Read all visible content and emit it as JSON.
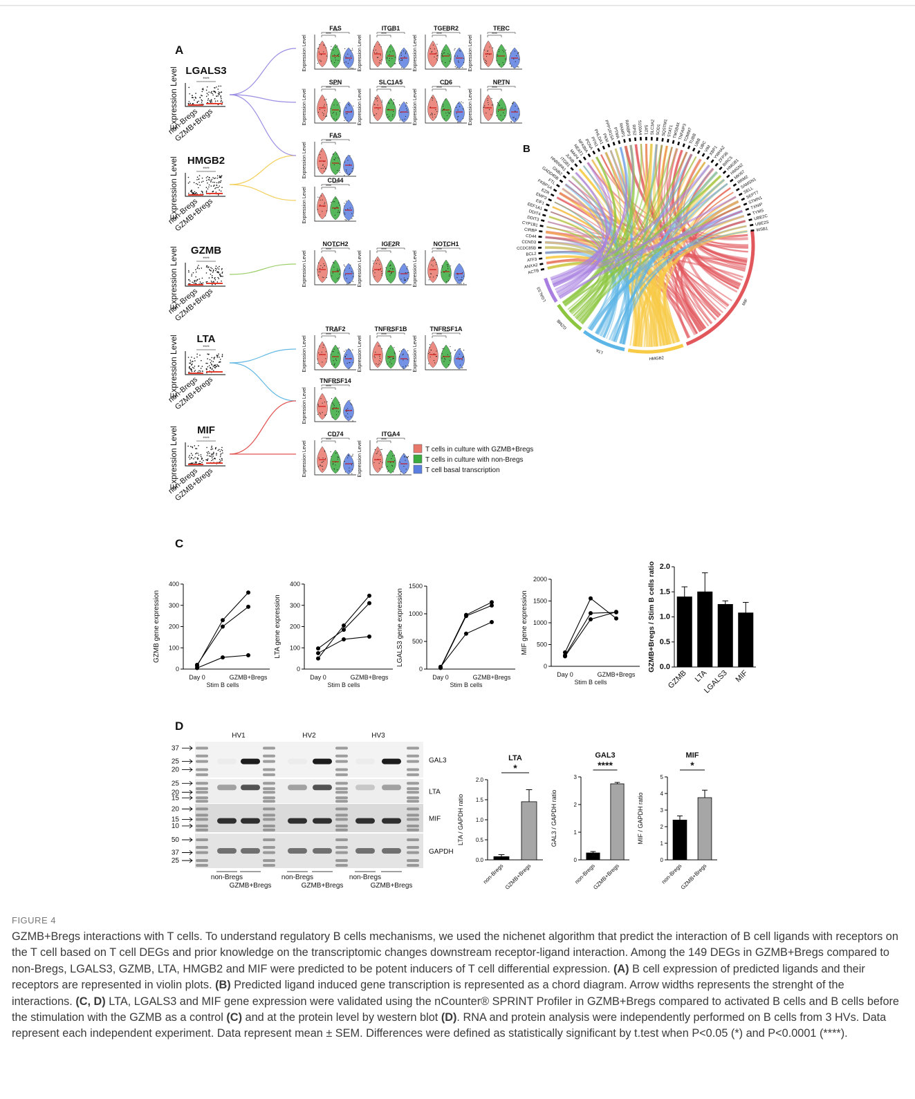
{
  "figure": {
    "panel_a": {
      "label": "A",
      "y_axis_label": "Expression Level",
      "groups": [
        "non-Bregs",
        "GZMB+Bregs"
      ],
      "significance": "****",
      "ligands": [
        {
          "name": "LGALS3",
          "color": "#9a8de3",
          "receptor_rows": [
            [
              "FAS",
              "ITGB1",
              "TGFBR2",
              "TFRC"
            ],
            [
              "SPN",
              "SLC1A5",
              "CD6",
              "NPTN"
            ]
          ]
        },
        {
          "name": "HMGB2",
          "color": "#f3cf5a",
          "receptor_rows": [
            [
              "FAS"
            ],
            [
              "CD44"
            ]
          ]
        },
        {
          "name": "GZMB",
          "color": "#9ccf6a",
          "receptor_rows": [
            [
              "NOTCH2",
              "IGF2R",
              "NOTCH1"
            ]
          ]
        },
        {
          "name": "LTA",
          "color": "#62b8e3",
          "receptor_rows": [
            [
              "TRAF2",
              "TNFRSF1B",
              "TNFRSF1A"
            ],
            [
              "TNFRSF14"
            ]
          ]
        },
        {
          "name": "MIF",
          "color": "#e0504e",
          "receptor_rows": [
            [
              "CD74",
              "ITGA4"
            ]
          ]
        }
      ],
      "legend": [
        {
          "name": "T cells in culture with GZMB+Bregs",
          "color": "#e8776c"
        },
        {
          "name": "T cells in culture with non-Bregs",
          "color": "#3aab3e"
        },
        {
          "name": "T cell basal transcription",
          "color": "#5a7fe0"
        }
      ]
    },
    "panel_b": {
      "label": "B",
      "sectors": [
        {
          "name": "MIF",
          "color": "#e2575c"
        },
        {
          "name": "HMGB2",
          "color": "#f8cb47"
        },
        {
          "name": "LTA",
          "color": "#5bb5e6"
        },
        {
          "name": "GZMB",
          "color": "#8cc63f"
        },
        {
          "name": "LGALS3",
          "color": "#a87fe0"
        }
      ],
      "genes": [
        "ACTB",
        "ANXA2",
        "ATF3",
        "BCL2",
        "CCDC85B",
        "CCND3",
        "CD44",
        "CIRBP",
        "CYP1B1",
        "DDIT3",
        "DDIT4",
        "EEF1A1",
        "EIF1",
        "EMP3",
        "EZR",
        "FKBP1A",
        "FTL",
        "GADD45B",
        "GNB2",
        "HNRNPA1",
        "ITGB1",
        "JUNB",
        "MAP4",
        "NEAT1",
        "NFKBIA",
        "PCNA",
        "PFN1",
        "PHLDA1",
        "PKM",
        "PPP1R15A",
        "PTMA",
        "RAMP1",
        "RANBP1",
        "RPS2",
        "S100A4",
        "SAT1",
        "SLC3A2",
        "SOD1",
        "SQSTM1",
        "STAT1",
        "TMSB4X",
        "TNFAIP3",
        "TOMM7",
        "TUBB",
        "UBB",
        "UBC",
        "VIM",
        "XBP1",
        "YWHAZ",
        "ZFP36",
        "BIRC5",
        "HMGB1",
        "HMGN2",
        "MKI67",
        "RRM2",
        "SAMSN1",
        "SELL",
        "SEPT7",
        "STMN1",
        "TXNIP",
        "TYMS",
        "UBE2C",
        "UBE2S",
        "WSB1"
      ]
    },
    "panel_c": {
      "label": "C"
    },
    "panel_d": {
      "label": "D",
      "donors": [
        "HV1",
        "HV2",
        "HV3"
      ],
      "groups": [
        "non-Bregs",
        "GZMB+Bregs"
      ],
      "blots": [
        {
          "name": "GAL3",
          "markers": [
            "37",
            "25",
            "20"
          ]
        },
        {
          "name": "LTA",
          "markers": [
            "25",
            "20",
            "15"
          ]
        },
        {
          "name": "MIF",
          "markers": [
            "20",
            "15",
            "10"
          ]
        },
        {
          "name": "GAPDH",
          "markers": [
            "50",
            "37",
            "25"
          ]
        }
      ]
    }
  },
  "chart_data": [
    {
      "type": "line",
      "y_label": "GZMB gene expression",
      "x": [
        "Day 0",
        "Stim B cells",
        "GZMB+Bregs"
      ],
      "color": "#000000",
      "series": [
        {
          "values": [
            15,
            230,
            360
          ]
        },
        {
          "values": [
            20,
            200,
            293
          ]
        },
        {
          "values": [
            5,
            55,
            65
          ]
        }
      ],
      "ylim": [
        0,
        400
      ],
      "yticks": [
        0,
        100,
        200,
        300,
        400
      ]
    },
    {
      "type": "line",
      "y_label": "LTA gene expression",
      "x": [
        "Day 0",
        "Stim B cells",
        "GZMB+Bregs"
      ],
      "color": "#000000",
      "series": [
        {
          "values": [
            97,
            185,
            310
          ]
        },
        {
          "values": [
            50,
            205,
            345
          ]
        },
        {
          "values": [
            75,
            140,
            153
          ]
        }
      ],
      "ylim": [
        0,
        400
      ],
      "yticks": [
        0,
        100,
        200,
        300,
        400
      ]
    },
    {
      "type": "line",
      "y_label": "LGALS3 gene expression",
      "x": [
        "Day 0",
        "Stim B cells",
        "GZMB+Bregs"
      ],
      "color": "#000000",
      "series": [
        {
          "values": [
            30,
            980,
            1210
          ]
        },
        {
          "values": [
            20,
            960,
            1150
          ]
        },
        {
          "values": [
            40,
            640,
            850
          ]
        }
      ],
      "ylim": [
        0,
        1500
      ],
      "yticks": [
        0,
        500,
        1000,
        1500
      ]
    },
    {
      "type": "line",
      "y_label": "MIF gene expression",
      "x": [
        "Day 0",
        "Stim B cells",
        "GZMB+Bregs"
      ],
      "color": "#000000",
      "series": [
        {
          "values": [
            320,
            1560,
            1100
          ]
        },
        {
          "values": [
            250,
            1220,
            1240
          ]
        },
        {
          "values": [
            230,
            1080,
            1250
          ]
        }
      ],
      "ylim": [
        0,
        2000
      ],
      "yticks": [
        0,
        500,
        1000,
        1500,
        2000
      ]
    },
    {
      "type": "bar",
      "y_label": "GZMB+Bregs / Stim B cells ratio",
      "categories": [
        "GZMB",
        "LTA",
        "LGALS3",
        "MIF"
      ],
      "values": [
        1.4,
        1.5,
        1.25,
        1.08
      ],
      "errors": [
        0.2,
        0.38,
        0.07,
        0.21
      ],
      "color": "#000000",
      "ylim": [
        0,
        2
      ],
      "yticks": [
        {
          "value": 0,
          "label": "0.0"
        },
        {
          "value": 0.5,
          "label": "0.5"
        },
        {
          "value": 1,
          "label": "1.0"
        },
        {
          "value": 1.5,
          "label": "1.5"
        },
        {
          "value": 2,
          "label": "2.0"
        }
      ]
    },
    {
      "type": "bar",
      "title": "LTA",
      "y_label": "LTA / GAPDH ratio",
      "categories": [
        "non-Bregs",
        "GZMB+Bregs"
      ],
      "values": [
        0.08,
        1.45
      ],
      "errors": [
        0.05,
        0.3
      ],
      "colors": [
        "#000000",
        "#a6a6a6"
      ],
      "annotation": "*",
      "ylim": [
        0,
        2
      ],
      "yticks": [
        {
          "value": 0,
          "label": "0.0"
        },
        {
          "value": 0.5,
          "label": "0.5"
        },
        {
          "value": 1,
          "label": "1.0"
        },
        {
          "value": 1.5,
          "label": "1.5"
        },
        {
          "value": 2,
          "label": "2.0"
        }
      ]
    },
    {
      "type": "bar",
      "title": "GAL3",
      "y_label": "GAL3 / GAPDH ratio",
      "categories": [
        "non-Bregs",
        "GZMB+Bregs"
      ],
      "values": [
        0.25,
        2.75
      ],
      "errors": [
        0.05,
        0.05
      ],
      "colors": [
        "#000000",
        "#a6a6a6"
      ],
      "annotation": "****",
      "ylim": [
        0,
        3
      ],
      "yticks": [
        0,
        1,
        2,
        3
      ]
    },
    {
      "type": "bar",
      "title": "MIF",
      "y_label": "MIF / GAPDH ratio",
      "categories": [
        "non-Bregs",
        "GZMB+Bregs"
      ],
      "values": [
        2.4,
        3.75
      ],
      "errors": [
        0.25,
        0.45
      ],
      "colors": [
        "#000000",
        "#a6a6a6"
      ],
      "annotation": "*",
      "ylim": [
        0,
        5
      ],
      "yticks": [
        0,
        1,
        2,
        3,
        4,
        5
      ]
    }
  ],
  "caption": {
    "label": "FIGURE 4",
    "segments": [
      {
        "text": "GZMB+Bregs interactions with T cells. To understand regulatory B cells mechanisms, we used the nichenet algorithm that predict the interaction of B cell ligands with receptors on the T cell based on T cell DEGs and prior knowledge on the transcriptomic changes downstream receptor-ligand interaction. Among the 149 DEGs in GZMB+Bregs compared to non-Bregs, LGALS3, GZMB, LTA, HMGB2 and MIF were predicted to be potent inducers of T cell differential expression. ",
        "bold": false
      },
      {
        "text": "(A)",
        "bold": true
      },
      {
        "text": " B cell expression of predicted ligands and their receptors are represented in violin plots. ",
        "bold": false
      },
      {
        "text": "(B)",
        "bold": true
      },
      {
        "text": " Predicted ligand induced gene transcription is represented as a chord diagram. Arrow widths represents the strenght of the interactions. ",
        "bold": false
      },
      {
        "text": "(C, D)",
        "bold": true
      },
      {
        "text": " LTA, LGALS3 and MIF gene expression were validated using the nCounter® SPRINT Profiler in GZMB+Bregs compared to activated B cells and B cells before the stimulation with the GZMB as a control ",
        "bold": false
      },
      {
        "text": "(C)",
        "bold": true
      },
      {
        "text": " and at the protein level by western blot ",
        "bold": false
      },
      {
        "text": "(D)",
        "bold": true
      },
      {
        "text": ". RNA and protein analysis were independently performed on B cells from 3 HVs. Data represent each independent experiment. Data represent mean ± SEM. Differences were defined as statistically significant by t.test when P<0.05 (*) and P<0.0001 (****).",
        "bold": false
      }
    ]
  }
}
